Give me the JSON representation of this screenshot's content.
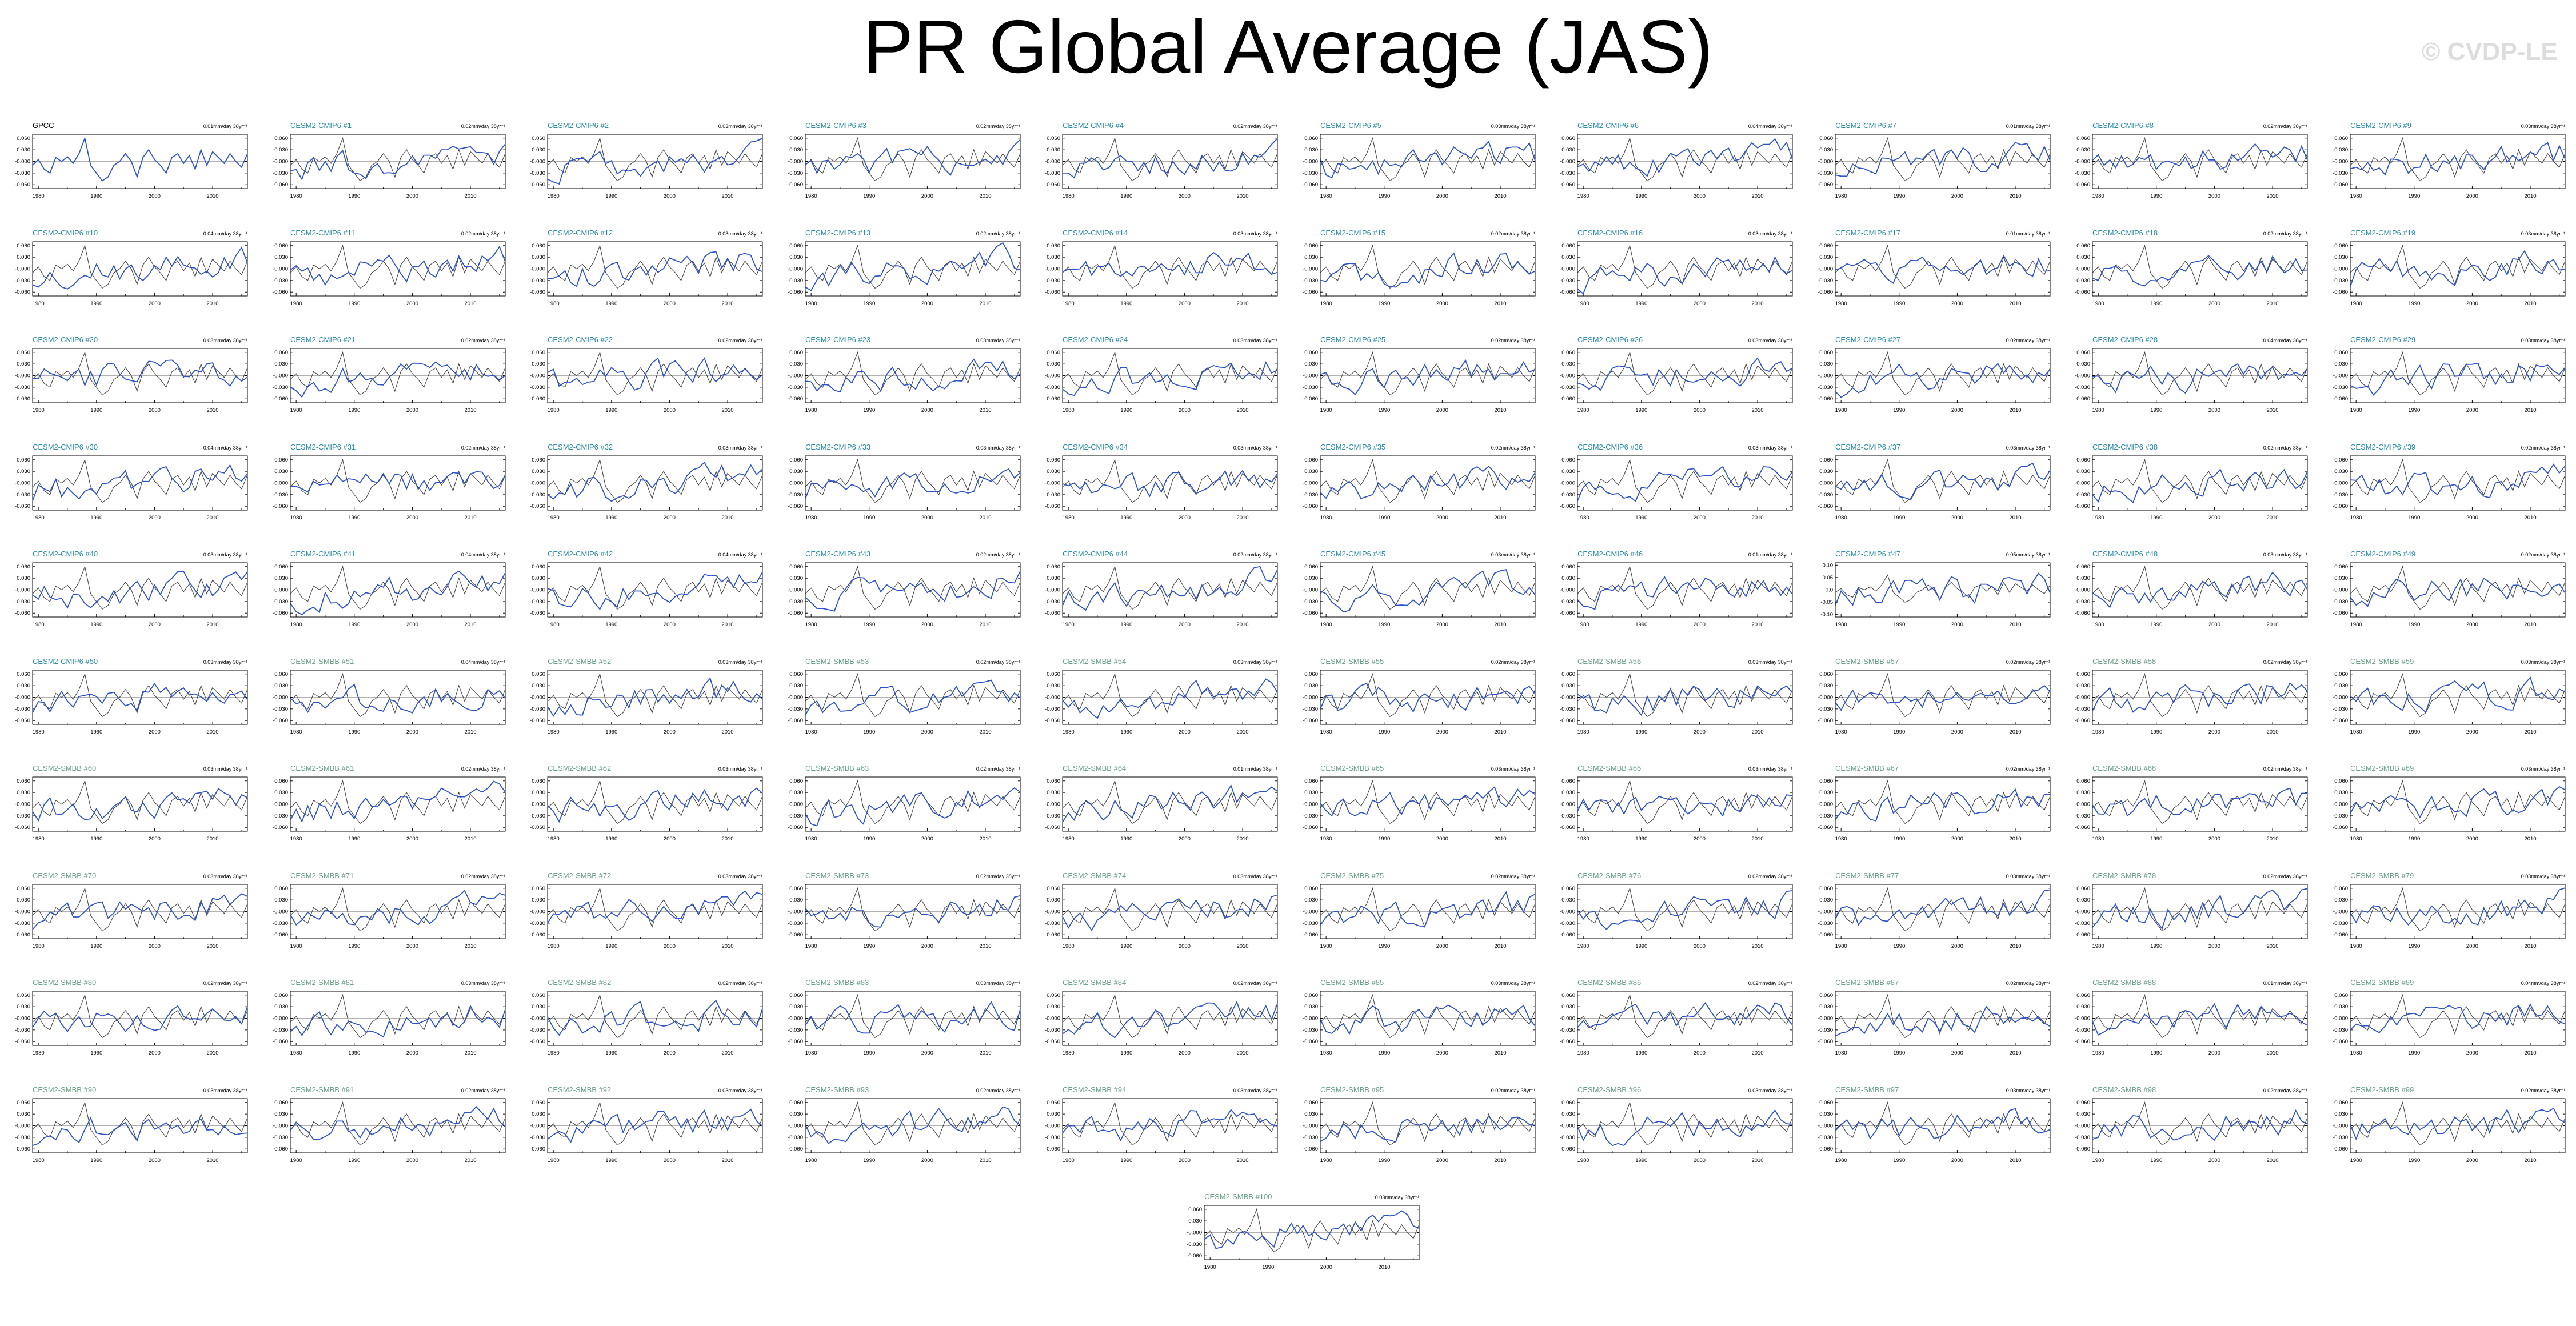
{
  "title": "PR Global Average (JAS)",
  "watermark": "© CVDP-LE",
  "colors": {
    "observed_line": "#444444",
    "ensemble_line": "#2e52c8",
    "cmip6_title": "#2a8ca8",
    "smbb_title": "#6aa088",
    "obs_title": "#000000"
  },
  "chart_data": {
    "type": "line",
    "layout": "grid of small-multiple time series, 10 columns",
    "units_note": "mm/day 38yr⁻¹",
    "xlim": [
      1979,
      2016
    ],
    "x_ticks": [
      "1980",
      "1990",
      "2000",
      "2010"
    ],
    "y_ticks": [
      "0.060",
      "0.030",
      "-0.000",
      "-0.030",
      "-0.060"
    ],
    "ylim": [
      -0.07,
      0.07
    ],
    "panel_47_y_ticks": [
      "0.10",
      "0.05",
      "0.0",
      "-0.05",
      "-0.10"
    ],
    "panel_47_ylim": [
      -0.11,
      0.11
    ],
    "observed_series": {
      "name": "GPCC",
      "years": [
        1979,
        1980,
        1981,
        1982,
        1983,
        1984,
        1985,
        1986,
        1987,
        1988,
        1989,
        1990,
        1991,
        1992,
        1993,
        1994,
        1995,
        1996,
        1997,
        1998,
        1999,
        2000,
        2001,
        2002,
        2003,
        2004,
        2005,
        2006,
        2007,
        2008,
        2009,
        2010,
        2011,
        2012,
        2013,
        2014,
        2015,
        2016
      ],
      "values": [
        -0.01,
        0.005,
        -0.02,
        -0.03,
        0.01,
        0.0,
        0.012,
        -0.005,
        0.02,
        0.06,
        -0.01,
        -0.03,
        -0.05,
        -0.04,
        -0.01,
        0.0,
        0.02,
        0.0,
        -0.04,
        0.01,
        0.03,
        0.005,
        -0.01,
        -0.03,
        0.01,
        0.02,
        -0.005,
        0.015,
        -0.02,
        0.03,
        -0.01,
        0.025,
        0.01,
        -0.005,
        0.02,
        0.0,
        -0.015,
        0.02
      ]
    },
    "panels": [
      {
        "label": "GPCC",
        "trend": "0.01mm/day 38yr⁻¹"
      },
      {
        "label": "CESM2-CMIP6 #1",
        "trend": "0.02mm/day 38yr⁻¹"
      },
      {
        "label": "CESM2-CMIP6 #2",
        "trend": "0.03mm/day 38yr⁻¹"
      },
      {
        "label": "CESM2-CMIP6 #3",
        "trend": "0.02mm/day 38yr⁻¹"
      },
      {
        "label": "CESM2-CMIP6 #4",
        "trend": "0.02mm/day 38yr⁻¹"
      },
      {
        "label": "CESM2-CMIP6 #5",
        "trend": "0.03mm/day 38yr⁻¹"
      },
      {
        "label": "CESM2-CMIP6 #6",
        "trend": "0.04mm/day 38yr⁻¹"
      },
      {
        "label": "CESM2-CMIP6 #7",
        "trend": "0.01mm/day 38yr⁻¹"
      },
      {
        "label": "CESM2-CMIP6 #8",
        "trend": "0.02mm/day 38yr⁻¹"
      },
      {
        "label": "CESM2-CMIP6 #9",
        "trend": "0.03mm/day 38yr⁻¹"
      },
      {
        "label": "CESM2-CMIP6 #10",
        "trend": "0.04mm/day 38yr⁻¹"
      },
      {
        "label": "CESM2-CMIP6 #11",
        "trend": "0.02mm/day 38yr⁻¹"
      },
      {
        "label": "CESM2-CMIP6 #12",
        "trend": "0.03mm/day 38yr⁻¹"
      },
      {
        "label": "CESM2-CMIP6 #13",
        "trend": "0.02mm/day 38yr⁻¹"
      },
      {
        "label": "CESM2-CMIP6 #14",
        "trend": "0.03mm/day 38yr⁻¹"
      },
      {
        "label": "CESM2-CMIP6 #15",
        "trend": "0.02mm/day 38yr⁻¹"
      },
      {
        "label": "CESM2-CMIP6 #16",
        "trend": "0.03mm/day 38yr⁻¹"
      },
      {
        "label": "CESM2-CMIP6 #17",
        "trend": "0.01mm/day 38yr⁻¹"
      },
      {
        "label": "CESM2-CMIP6 #18",
        "trend": "0.02mm/day 38yr⁻¹"
      },
      {
        "label": "CESM2-CMIP6 #19",
        "trend": "0.03mm/day 38yr⁻¹"
      },
      {
        "label": "CESM2-CMIP6 #20",
        "trend": "0.03mm/day 38yr⁻¹"
      },
      {
        "label": "CESM2-CMIP6 #21",
        "trend": "0.02mm/day 38yr⁻¹"
      },
      {
        "label": "CESM2-CMIP6 #22",
        "trend": "0.02mm/day 38yr⁻¹"
      },
      {
        "label": "CESM2-CMIP6 #23",
        "trend": "0.03mm/day 38yr⁻¹"
      },
      {
        "label": "CESM2-CMIP6 #24",
        "trend": "0.03mm/day 38yr⁻¹"
      },
      {
        "label": "CESM2-CMIP6 #25",
        "trend": "0.02mm/day 38yr⁻¹"
      },
      {
        "label": "CESM2-CMIP6 #26",
        "trend": "0.03mm/day 38yr⁻¹"
      },
      {
        "label": "CESM2-CMIP6 #27",
        "trend": "0.02mm/day 38yr⁻¹"
      },
      {
        "label": "CESM2-CMIP6 #28",
        "trend": "0.04mm/day 38yr⁻¹"
      },
      {
        "label": "CESM2-CMIP6 #29",
        "trend": "0.03mm/day 38yr⁻¹"
      },
      {
        "label": "CESM2-CMIP6 #30",
        "trend": "0.04mm/day 38yr⁻¹"
      },
      {
        "label": "CESM2-CMIP6 #31",
        "trend": "0.02mm/day 38yr⁻¹"
      },
      {
        "label": "CESM2-CMIP6 #32",
        "trend": "0.03mm/day 38yr⁻¹"
      },
      {
        "label": "CESM2-CMIP6 #33",
        "trend": "0.03mm/day 38yr⁻¹"
      },
      {
        "label": "CESM2-CMIP6 #34",
        "trend": "0.03mm/day 38yr⁻¹"
      },
      {
        "label": "CESM2-CMIP6 #35",
        "trend": "0.02mm/day 38yr⁻¹"
      },
      {
        "label": "CESM2-CMIP6 #36",
        "trend": "0.03mm/day 38yr⁻¹"
      },
      {
        "label": "CESM2-CMIP6 #37",
        "trend": "0.03mm/day 38yr⁻¹"
      },
      {
        "label": "CESM2-CMIP6 #38",
        "trend": "0.02mm/day 38yr⁻¹"
      },
      {
        "label": "CESM2-CMIP6 #39",
        "trend": "0.02mm/day 38yr⁻¹"
      },
      {
        "label": "CESM2-CMIP6 #40",
        "trend": "0.03mm/day 38yr⁻¹"
      },
      {
        "label": "CESM2-CMIP6 #41",
        "trend": "0.04mm/day 38yr⁻¹"
      },
      {
        "label": "CESM2-CMIP6 #42",
        "trend": "0.04mm/day 38yr⁻¹"
      },
      {
        "label": "CESM2-CMIP6 #43",
        "trend": "0.02mm/day 38yr⁻¹"
      },
      {
        "label": "CESM2-CMIP6 #44",
        "trend": "0.02mm/day 38yr⁻¹"
      },
      {
        "label": "CESM2-CMIP6 #45",
        "trend": "0.03mm/day 38yr⁻¹"
      },
      {
        "label": "CESM2-CMIP6 #46",
        "trend": "0.01mm/day 38yr⁻¹"
      },
      {
        "label": "CESM2-CMIP6 #47",
        "trend": "0.05mm/day 38yr⁻¹"
      },
      {
        "label": "CESM2-CMIP6 #48",
        "trend": "0.03mm/day 38yr⁻¹"
      },
      {
        "label": "CESM2-CMIP6 #49",
        "trend": "0.02mm/day 38yr⁻¹"
      },
      {
        "label": "CESM2-CMIP6 #50",
        "trend": "0.03mm/day 38yr⁻¹"
      },
      {
        "label": "CESM2-SMBB #51",
        "trend": "0.04mm/day 38yr⁻¹"
      },
      {
        "label": "CESM2-SMBB #52",
        "trend": "0.03mm/day 38yr⁻¹"
      },
      {
        "label": "CESM2-SMBB #53",
        "trend": "0.02mm/day 38yr⁻¹"
      },
      {
        "label": "CESM2-SMBB #54",
        "trend": "0.03mm/day 38yr⁻¹"
      },
      {
        "label": "CESM2-SMBB #55",
        "trend": "0.02mm/day 38yr⁻¹"
      },
      {
        "label": "CESM2-SMBB #56",
        "trend": "0.03mm/day 38yr⁻¹"
      },
      {
        "label": "CESM2-SMBB #57",
        "trend": "0.02mm/day 38yr⁻¹"
      },
      {
        "label": "CESM2-SMBB #58",
        "trend": "0.02mm/day 38yr⁻¹"
      },
      {
        "label": "CESM2-SMBB #59",
        "trend": "0.03mm/day 38yr⁻¹"
      },
      {
        "label": "CESM2-SMBB #60",
        "trend": "0.03mm/day 38yr⁻¹"
      },
      {
        "label": "CESM2-SMBB #61",
        "trend": "0.02mm/day 38yr⁻¹"
      },
      {
        "label": "CESM2-SMBB #62",
        "trend": "0.03mm/day 38yr⁻¹"
      },
      {
        "label": "CESM2-SMBB #63",
        "trend": "0.02mm/day 38yr⁻¹"
      },
      {
        "label": "CESM2-SMBB #64",
        "trend": "0.01mm/day 38yr⁻¹"
      },
      {
        "label": "CESM2-SMBB #65",
        "trend": "0.03mm/day 38yr⁻¹"
      },
      {
        "label": "CESM2-SMBB #66",
        "trend": "0.03mm/day 38yr⁻¹"
      },
      {
        "label": "CESM2-SMBB #67",
        "trend": "0.02mm/day 38yr⁻¹"
      },
      {
        "label": "CESM2-SMBB #68",
        "trend": "0.02mm/day 38yr⁻¹"
      },
      {
        "label": "CESM2-SMBB #69",
        "trend": "0.03mm/day 38yr⁻¹"
      },
      {
        "label": "CESM2-SMBB #70",
        "trend": "0.03mm/day 38yr⁻¹"
      },
      {
        "label": "CESM2-SMBB #71",
        "trend": "0.02mm/day 38yr⁻¹"
      },
      {
        "label": "CESM2-SMBB #72",
        "trend": "0.03mm/day 38yr⁻¹"
      },
      {
        "label": "CESM2-SMBB #73",
        "trend": "0.02mm/day 38yr⁻¹"
      },
      {
        "label": "CESM2-SMBB #74",
        "trend": "0.03mm/day 38yr⁻¹"
      },
      {
        "label": "CESM2-SMBB #75",
        "trend": "0.02mm/day 38yr⁻¹"
      },
      {
        "label": "CESM2-SMBB #76",
        "trend": "0.02mm/day 38yr⁻¹"
      },
      {
        "label": "CESM2-SMBB #77",
        "trend": "0.03mm/day 38yr⁻¹"
      },
      {
        "label": "CESM2-SMBB #78",
        "trend": "0.02mm/day 38yr⁻¹"
      },
      {
        "label": "CESM2-SMBB #79",
        "trend": "0.03mm/day 38yr⁻¹"
      },
      {
        "label": "CESM2-SMBB #80",
        "trend": "0.02mm/day 38yr⁻¹"
      },
      {
        "label": "CESM2-SMBB #81",
        "trend": "0.03mm/day 38yr⁻¹"
      },
      {
        "label": "CESM2-SMBB #82",
        "trend": "0.02mm/day 38yr⁻¹"
      },
      {
        "label": "CESM2-SMBB #83",
        "trend": "0.03mm/day 38yr⁻¹"
      },
      {
        "label": "CESM2-SMBB #84",
        "trend": "0.02mm/day 38yr⁻¹"
      },
      {
        "label": "CESM2-SMBB #85",
        "trend": "0.03mm/day 38yr⁻¹"
      },
      {
        "label": "CESM2-SMBB #86",
        "trend": "0.02mm/day 38yr⁻¹"
      },
      {
        "label": "CESM2-SMBB #87",
        "trend": "0.02mm/day 38yr⁻¹"
      },
      {
        "label": "CESM2-SMBB #88",
        "trend": "0.01mm/day 38yr⁻¹"
      },
      {
        "label": "CESM2-SMBB #89",
        "trend": "0.04mm/day 38yr⁻¹"
      },
      {
        "label": "CESM2-SMBB #90",
        "trend": "0.03mm/day 38yr⁻¹"
      },
      {
        "label": "CESM2-SMBB #91",
        "trend": "0.02mm/day 38yr⁻¹"
      },
      {
        "label": "CESM2-SMBB #92",
        "trend": "0.03mm/day 38yr⁻¹"
      },
      {
        "label": "CESM2-SMBB #93",
        "trend": "0.02mm/day 38yr⁻¹"
      },
      {
        "label": "CESM2-SMBB #94",
        "trend": "0.03mm/day 38yr⁻¹"
      },
      {
        "label": "CESM2-SMBB #95",
        "trend": "0.02mm/day 38yr⁻¹"
      },
      {
        "label": "CESM2-SMBB #96",
        "trend": "0.03mm/day 38yr⁻¹"
      },
      {
        "label": "CESM2-SMBB #97",
        "trend": "0.03mm/day 38yr⁻¹"
      },
      {
        "label": "CESM2-SMBB #98",
        "trend": "0.02mm/day 38yr⁻¹"
      },
      {
        "label": "CESM2-SMBB #99",
        "trend": "0.02mm/day 38yr⁻¹"
      },
      {
        "label": "CESM2-SMBB #100",
        "trend": "0.03mm/day 38yr⁻¹"
      }
    ]
  }
}
